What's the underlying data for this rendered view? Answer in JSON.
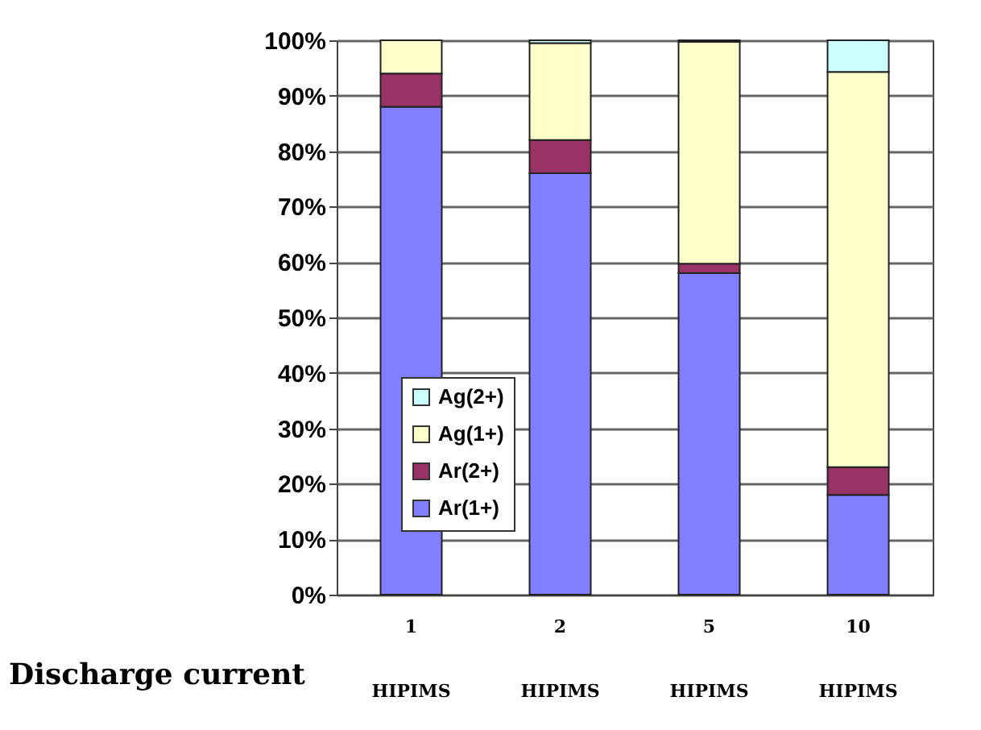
{
  "chart_data": {
    "type": "bar",
    "stacked": true,
    "xlabel": "Discharge current",
    "categories": [
      "1\nHIPIMS",
      "2\nHIPIMS",
      "5\nHIPIMS",
      "10\nHIPIMS"
    ],
    "series": [
      {
        "name": "Ar(1+)",
        "color": "#8080ff",
        "values": [
          88,
          76,
          58,
          18
        ]
      },
      {
        "name": "Ar(2+)",
        "color": "#993366",
        "values": [
          6,
          6,
          1.7,
          5
        ]
      },
      {
        "name": "Ag(1+)",
        "color": "#ffffcc",
        "values": [
          6,
          17.5,
          40,
          71.3
        ]
      },
      {
        "name": "Ag(2+)",
        "color": "#ccffff",
        "values": [
          null,
          0.5,
          0.3,
          5.7
        ]
      }
    ],
    "ylim": [
      0,
      100
    ],
    "yticks": [
      {
        "value": 0,
        "label": "0%"
      },
      {
        "value": 10,
        "label": "10%"
      },
      {
        "value": 20,
        "label": "20%"
      },
      {
        "value": 30,
        "label": "30%"
      },
      {
        "value": 40,
        "label": "40%"
      },
      {
        "value": 50,
        "label": "50%"
      },
      {
        "value": 60,
        "label": "60%"
      },
      {
        "value": 70,
        "label": "70%"
      },
      {
        "value": 80,
        "label": "80%"
      },
      {
        "value": 90,
        "label": "90%"
      },
      {
        "value": 100,
        "label": "100%"
      }
    ],
    "grid": "y",
    "legend": "bottom left"
  }
}
